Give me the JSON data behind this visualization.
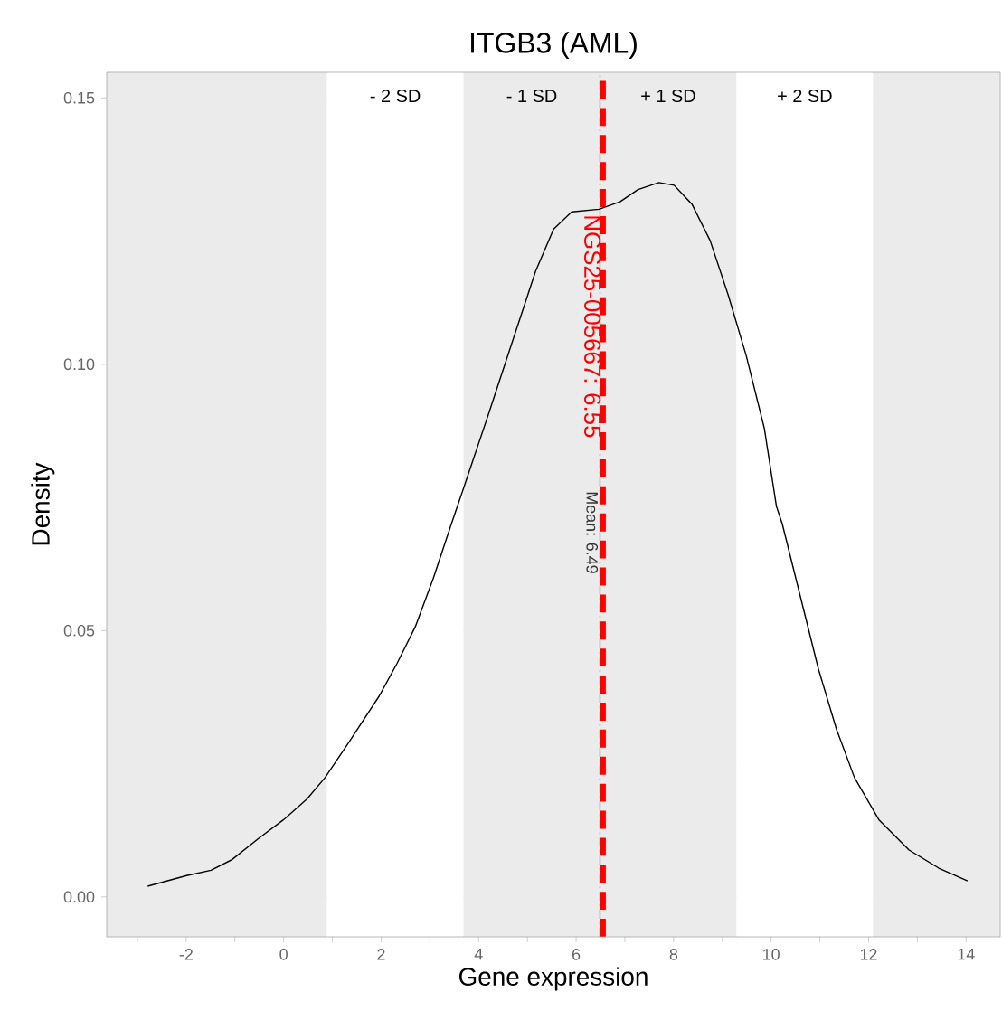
{
  "chart_data": {
    "type": "line",
    "title": "ITGB3 (AML)",
    "xlabel": "Gene expression",
    "ylabel": "Density",
    "series": [
      {
        "color": "#000000",
        "x": [
          -2.79,
          -1.99,
          -1.49,
          -1.06,
          -0.51,
          0.0,
          0.48,
          0.85,
          1.35,
          1.96,
          2.33,
          2.7,
          3.07,
          3.44,
          3.69,
          4.19,
          4.68,
          5.17,
          5.54,
          5.91,
          6.47,
          6.9,
          7.27,
          7.7,
          8.01,
          8.38,
          8.75,
          9.12,
          9.49,
          9.86,
          10.11,
          10.23,
          10.6,
          10.97,
          11.34,
          11.71,
          12.21,
          12.83,
          13.44,
          14.03
        ],
        "values": [
          0.002,
          0.004,
          0.005,
          0.007,
          0.011,
          0.0145,
          0.0184,
          0.0224,
          0.0292,
          0.0377,
          0.0439,
          0.0507,
          0.0598,
          0.07,
          0.0767,
          0.0903,
          0.1039,
          0.1175,
          0.1254,
          0.1286,
          0.1291,
          0.1305,
          0.1328,
          0.1341,
          0.1336,
          0.13,
          0.1232,
          0.113,
          0.1016,
          0.088,
          0.0733,
          0.07,
          0.0564,
          0.0428,
          0.0315,
          0.0224,
          0.0145,
          0.0088,
          0.0054,
          0.003
        ]
      }
    ],
    "xlim": [
      -3.63,
      14.7
    ],
    "ylim": [
      -0.0075,
      0.1548
    ],
    "xticks": [
      {
        "value": -3,
        "label": null
      },
      -2,
      {
        "value": -1,
        "label": null
      },
      0,
      {
        "value": 1,
        "label": null
      },
      2,
      {
        "value": 3,
        "label": null
      },
      4,
      {
        "value": 5,
        "label": null
      },
      6,
      {
        "value": 7,
        "label": null
      },
      8,
      {
        "value": 9,
        "label": null
      },
      10,
      {
        "value": 11,
        "label": null
      },
      12,
      {
        "value": 13,
        "label": null
      },
      14
    ],
    "yticks": [
      {
        "value": 0,
        "label": "0.00"
      },
      {
        "value": 0.05,
        "label": "0.05"
      },
      {
        "value": 0.1,
        "label": "0.10"
      },
      {
        "value": 0.15,
        "label": "0.15"
      }
    ],
    "grid": true,
    "marker": "none",
    "line_style": "solid",
    "bands": [
      {
        "axis": "x",
        "from": -3.63,
        "to": 0.89,
        "color": "#ebebeb"
      },
      {
        "axis": "x",
        "from": 0.89,
        "to": 3.69,
        "label": "- 2 SD",
        "color": "#ffffff"
      },
      {
        "axis": "x",
        "from": 3.69,
        "to": 6.49,
        "label": "- 1 SD",
        "color": "#ebebeb"
      },
      {
        "axis": "x",
        "from": 6.49,
        "to": 9.29,
        "label": "+ 1 SD",
        "color": "#ebebeb"
      },
      {
        "axis": "x",
        "from": 9.29,
        "to": 12.09,
        "label": "+ 2 SD",
        "color": "#ffffff"
      },
      {
        "axis": "x",
        "from": 12.09,
        "to": 14.7,
        "color": "#ebebeb"
      }
    ],
    "ref_lines": [
      {
        "axis": "x",
        "value": 6.49,
        "label": "Mean: 6.49",
        "color": "#333333",
        "line_style": "dashdot"
      },
      {
        "axis": "x",
        "value": 6.55,
        "label": "NGS25-005667: 6.55",
        "color": "#ff0000",
        "line_style": "dashed"
      }
    ]
  }
}
